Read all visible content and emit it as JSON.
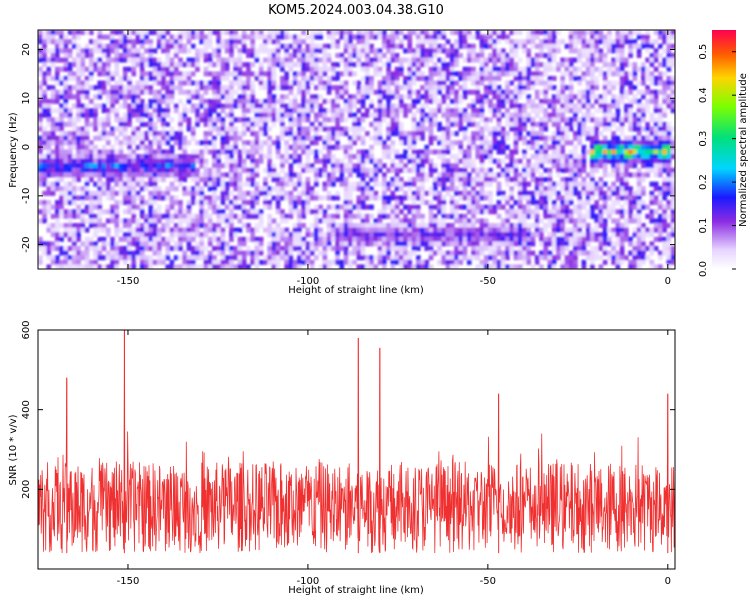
{
  "title": "KOM5.2024.003.04.38.G10",
  "chart_data": [
    {
      "type": "heatmap",
      "xlabel": "Height of straight line (km)",
      "ylabel": "Frequency (Hz)",
      "xlim": [
        -175,
        2
      ],
      "ylim": [
        -25,
        24
      ],
      "xticks": [
        -150,
        -100,
        -50,
        0
      ],
      "yticks": [
        -20,
        -10,
        0,
        10,
        20
      ],
      "grid": false,
      "colorbar": {
        "label": "Normalized spectral amplitude",
        "range": [
          0,
          0.55
        ],
        "ticks": [
          0.0,
          0.1,
          0.2,
          0.3,
          0.4,
          0.5
        ]
      },
      "features": [
        {
          "x": [
            -175,
            -133
          ],
          "y": -4,
          "amplitude": 0.22
        },
        {
          "x": [
            -90,
            -40
          ],
          "y": -18,
          "amplitude": 0.15
        },
        {
          "x": [
            -20,
            -1
          ],
          "y": -1,
          "amplitude": 0.45
        }
      ]
    },
    {
      "type": "line",
      "xlabel": "Height of straight line (km)",
      "ylabel": "SNR (10 * v/v)",
      "xlim": [
        -175,
        2
      ],
      "ylim": [
        0,
        600
      ],
      "xticks": [
        -150,
        -100,
        -50,
        0
      ],
      "yticks": [
        200,
        400,
        600
      ],
      "color": "#f03030",
      "peaks": [
        {
          "x": -167,
          "y": 480
        },
        {
          "x": -151,
          "y": 600
        },
        {
          "x": -86,
          "y": 580
        },
        {
          "x": -80,
          "y": 555
        },
        {
          "x": -47,
          "y": 440
        },
        {
          "x": 0,
          "y": 440
        }
      ]
    }
  ]
}
